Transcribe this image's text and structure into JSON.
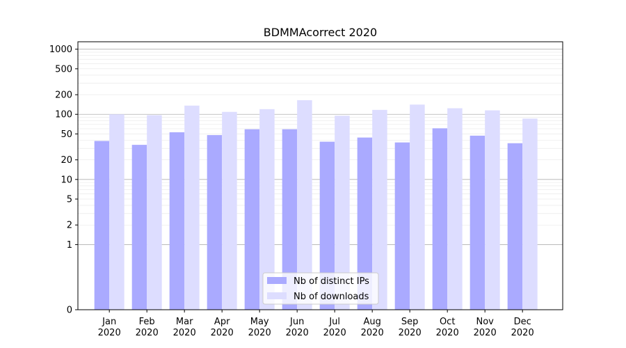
{
  "chart_data": {
    "type": "bar",
    "title": "BDMMAcorrect 2020",
    "xlabel": "",
    "ylabel": "",
    "y_scale": "symlog",
    "y_ticks": [
      0,
      1,
      2,
      5,
      10,
      20,
      50,
      100,
      200,
      500,
      1000
    ],
    "ylim": [
      0,
      1300
    ],
    "grid": "horizontal, major and minor",
    "legend_position": "lower-center",
    "categories": [
      "Jan\n2020",
      "Feb\n2020",
      "Mar\n2020",
      "Apr\n2020",
      "May\n2020",
      "Jun\n2020",
      "Jul\n2020",
      "Aug\n2020",
      "Sep\n2020",
      "Oct\n2020",
      "Nov\n2020",
      "Dec\n2020"
    ],
    "series": [
      {
        "name": "Nb of distinct IPs",
        "color": "#aaaaff",
        "values": [
          39,
          34,
          53,
          48,
          59,
          59,
          38,
          44,
          37,
          61,
          47,
          36
        ]
      },
      {
        "name": "Nb of downloads",
        "color": "#ddddff",
        "values": [
          100,
          97,
          136,
          109,
          120,
          165,
          95,
          117,
          141,
          124,
          115,
          86
        ]
      }
    ]
  }
}
